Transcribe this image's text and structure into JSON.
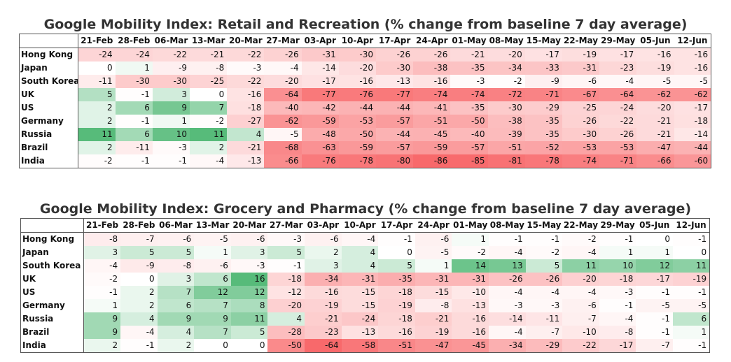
{
  "chart_data": [
    {
      "type": "heatmap",
      "title": "Google Mobility Index: Retail and Recreation (% change from baseline 7 day average)",
      "columns": [
        "21-Feb",
        "28-Feb",
        "06-Mar",
        "13-Mar",
        "20-Mar",
        "27-Mar",
        "03-Apr",
        "10-Apr",
        "17-Apr",
        "24-Apr",
        "01-May",
        "08-May",
        "15-May",
        "22-May",
        "29-May",
        "05-Jun",
        "12-Jun"
      ],
      "rows": [
        {
          "name": "Hong Kong",
          "values": [
            -24,
            -24,
            -22,
            -21,
            -22,
            -26,
            -31,
            -30,
            -26,
            -26,
            -21,
            -20,
            -17,
            -19,
            -17,
            -16,
            -16
          ]
        },
        {
          "name": "Japan",
          "values": [
            0,
            1,
            -9,
            -8,
            -3,
            -4,
            -14,
            -20,
            -30,
            -38,
            -35,
            -34,
            -33,
            -31,
            -23,
            -19,
            -16
          ]
        },
        {
          "name": "South Korea",
          "values": [
            -11,
            -30,
            -30,
            -25,
            -22,
            -20,
            -17,
            -16,
            -13,
            -16,
            -3,
            -2,
            -9,
            -6,
            -4,
            -5,
            -5
          ]
        },
        {
          "name": "UK",
          "values": [
            5,
            -1,
            3,
            0,
            -16,
            -64,
            -77,
            -76,
            -77,
            -74,
            -74,
            -72,
            -71,
            -67,
            -64,
            -62,
            -62
          ]
        },
        {
          "name": "US",
          "values": [
            2,
            6,
            9,
            7,
            -18,
            -40,
            -42,
            -44,
            -44,
            -41,
            -35,
            -30,
            -29,
            -25,
            -24,
            -20,
            -17
          ]
        },
        {
          "name": "Germany",
          "values": [
            2,
            -1,
            1,
            -2,
            -27,
            -62,
            -59,
            -53,
            -57,
            -51,
            -50,
            -38,
            -35,
            -26,
            -22,
            -21,
            -18
          ]
        },
        {
          "name": "Russia",
          "values": [
            11,
            6,
            10,
            11,
            4,
            -5,
            -48,
            -50,
            -44,
            -45,
            -40,
            -39,
            -35,
            -30,
            -26,
            -21,
            -14
          ]
        },
        {
          "name": "Brazil",
          "values": [
            2,
            -11,
            -3,
            2,
            -21,
            -68,
            -63,
            -59,
            -57,
            -59,
            -57,
            -51,
            -52,
            -53,
            -53,
            -47,
            -44
          ]
        },
        {
          "name": "India",
          "values": [
            -2,
            -1,
            -1,
            -4,
            -13,
            -66,
            -76,
            -78,
            -80,
            -86,
            -85,
            -81,
            -78,
            -74,
            -71,
            -66,
            -60
          ]
        }
      ]
    },
    {
      "type": "heatmap",
      "title": "Google Mobility Index: Grocery and Pharmacy (% change from baseline 7 day average)",
      "columns": [
        "21-Feb",
        "28-Feb",
        "06-Mar",
        "13-Mar",
        "20-Mar",
        "27-Mar",
        "03-Apr",
        "10-Apr",
        "17-Apr",
        "24-Apr",
        "01-May",
        "08-May",
        "15-May",
        "22-May",
        "29-May",
        "05-Jun",
        "12-Jun"
      ],
      "rows": [
        {
          "name": "Hong Kong",
          "values": [
            -8,
            -7,
            -6,
            -5,
            -6,
            -3,
            -6,
            -4,
            -1,
            -6,
            1,
            -1,
            -1,
            -2,
            -1,
            0,
            -1
          ]
        },
        {
          "name": "Japan",
          "values": [
            3,
            5,
            5,
            1,
            3,
            5,
            2,
            4,
            0,
            -5,
            -2,
            -4,
            -2,
            -4,
            1,
            1,
            0
          ]
        },
        {
          "name": "South Korea",
          "values": [
            -4,
            -9,
            -8,
            -6,
            -3,
            -1,
            3,
            4,
            5,
            1,
            14,
            13,
            5,
            11,
            10,
            12,
            11
          ]
        },
        {
          "name": "UK",
          "values": [
            -2,
            0,
            3,
            6,
            16,
            -18,
            -34,
            -31,
            -35,
            -31,
            -31,
            -26,
            -26,
            -20,
            -18,
            -17,
            -19
          ]
        },
        {
          "name": "US",
          "values": [
            -1,
            2,
            7,
            12,
            12,
            -12,
            -16,
            -15,
            -18,
            -15,
            -10,
            -4,
            -4,
            -4,
            -3,
            -1,
            -1
          ]
        },
        {
          "name": "Germany",
          "values": [
            1,
            2,
            6,
            7,
            8,
            -20,
            -19,
            -15,
            -19,
            -8,
            -13,
            -3,
            -3,
            -6,
            -1,
            -5,
            -5
          ]
        },
        {
          "name": "Russia",
          "values": [
            9,
            4,
            9,
            9,
            11,
            4,
            -21,
            -24,
            -18,
            -21,
            -16,
            -14,
            -11,
            -7,
            -4,
            -1,
            6
          ]
        },
        {
          "name": "Brazil",
          "values": [
            9,
            -4,
            4,
            7,
            5,
            -28,
            -23,
            -13,
            -16,
            -19,
            -16,
            -4,
            -7,
            -10,
            -8,
            -1,
            1
          ]
        },
        {
          "name": "India",
          "values": [
            2,
            -1,
            2,
            0,
            0,
            -50,
            -64,
            -58,
            -51,
            -47,
            -45,
            -34,
            -29,
            -22,
            -17,
            -7,
            -1
          ]
        }
      ]
    }
  ],
  "colors": {
    "positive_max": "#57bb7a",
    "neutral": "#ffffff",
    "negative_max": "#f8696b"
  }
}
